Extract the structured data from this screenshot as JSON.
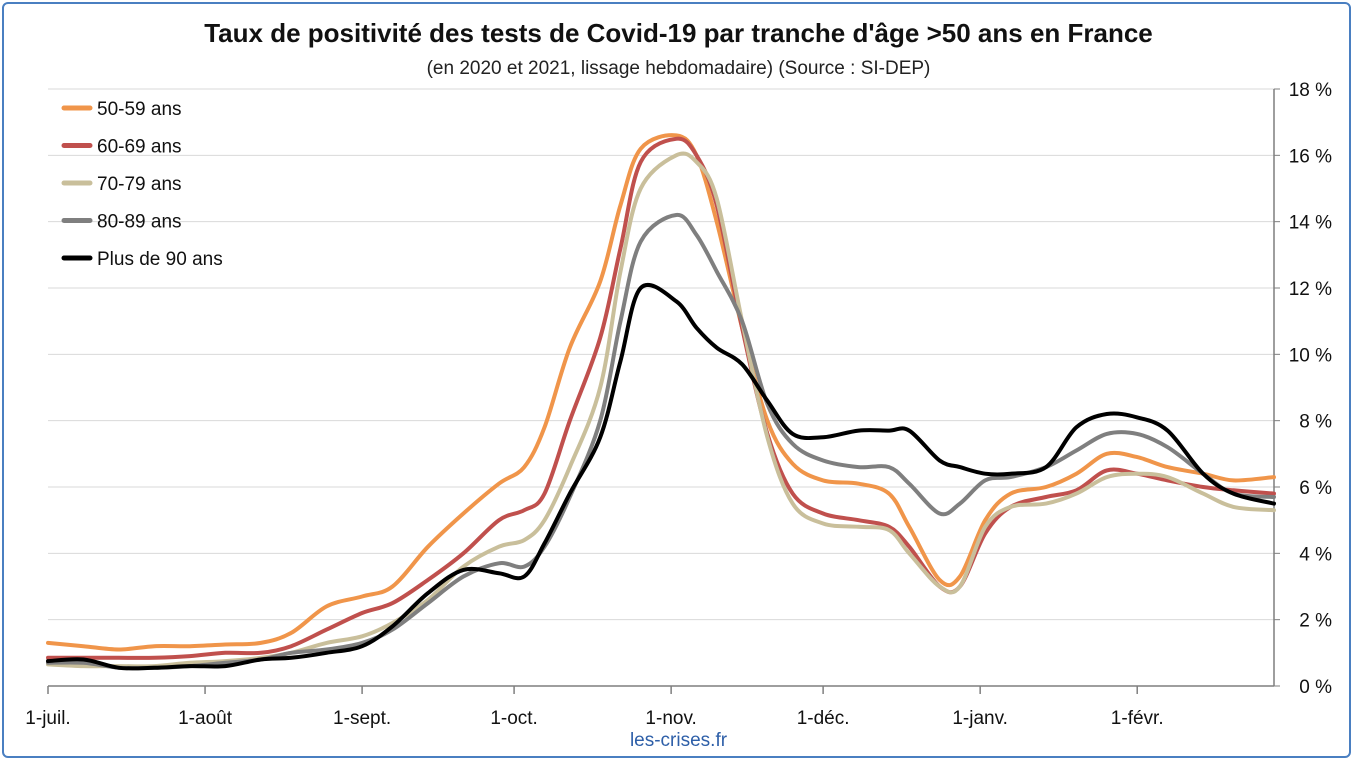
{
  "chart_data": {
    "type": "line",
    "title": "Taux de positivité des tests de Covid-19 par tranche d'âge >50 ans en France",
    "subtitle": "(en 2020 et 2021, lissage hebdomadaire) (Source : SI-DEP)",
    "source": "les-crises.fr",
    "x_axis": {
      "type": "date",
      "range": [
        "2020-07-01",
        "2021-02-28"
      ],
      "ticks": [
        {
          "date": "2020-07-01",
          "label": "1-juil."
        },
        {
          "date": "2020-08-01",
          "label": "1-août"
        },
        {
          "date": "2020-09-01",
          "label": "1-sept."
        },
        {
          "date": "2020-10-01",
          "label": "1-oct."
        },
        {
          "date": "2020-11-01",
          "label": "1-nov."
        },
        {
          "date": "2020-12-01",
          "label": "1-déc."
        },
        {
          "date": "2021-01-01",
          "label": "1-janv."
        },
        {
          "date": "2021-02-01",
          "label": "1-févr."
        }
      ]
    },
    "y_axis": {
      "position": "right",
      "ylim": [
        0,
        18
      ],
      "ticks": [
        {
          "value": 0,
          "label": "0 %"
        },
        {
          "value": 2,
          "label": "2 %"
        },
        {
          "value": 4,
          "label": "4 %"
        },
        {
          "value": 6,
          "label": "6 %"
        },
        {
          "value": 8,
          "label": "8 %"
        },
        {
          "value": 10,
          "label": "10 %"
        },
        {
          "value": 12,
          "label": "12 %"
        },
        {
          "value": 14,
          "label": "14 %"
        },
        {
          "value": 16,
          "label": "16 %"
        },
        {
          "value": 18,
          "label": "18 %"
        }
      ],
      "grid": true
    },
    "legend": "top-left",
    "series": [
      {
        "name": "50-59 ans",
        "color": "#f0954a",
        "points": [
          [
            "2020-07-01",
            1.3
          ],
          [
            "2020-07-08",
            1.2
          ],
          [
            "2020-07-15",
            1.1
          ],
          [
            "2020-07-22",
            1.2
          ],
          [
            "2020-07-29",
            1.2
          ],
          [
            "2020-08-05",
            1.25
          ],
          [
            "2020-08-12",
            1.3
          ],
          [
            "2020-08-18",
            1.6
          ],
          [
            "2020-08-25",
            2.4
          ],
          [
            "2020-09-01",
            2.7
          ],
          [
            "2020-09-07",
            3.0
          ],
          [
            "2020-09-14",
            4.2
          ],
          [
            "2020-09-21",
            5.2
          ],
          [
            "2020-09-28",
            6.1
          ],
          [
            "2020-10-03",
            6.6
          ],
          [
            "2020-10-07",
            7.8
          ],
          [
            "2020-10-12",
            10.2
          ],
          [
            "2020-10-18",
            12.2
          ],
          [
            "2020-10-22",
            14.5
          ],
          [
            "2020-10-26",
            16.2
          ],
          [
            "2020-11-02",
            16.6
          ],
          [
            "2020-11-06",
            16.0
          ],
          [
            "2020-11-10",
            14.0
          ],
          [
            "2020-11-15",
            10.8
          ],
          [
            "2020-11-20",
            8.0
          ],
          [
            "2020-11-25",
            6.7
          ],
          [
            "2020-12-01",
            6.2
          ],
          [
            "2020-12-08",
            6.1
          ],
          [
            "2020-12-14",
            5.8
          ],
          [
            "2020-12-18",
            4.8
          ],
          [
            "2020-12-24",
            3.2
          ],
          [
            "2020-12-28",
            3.3
          ],
          [
            "2021-01-02",
            5.0
          ],
          [
            "2021-01-07",
            5.8
          ],
          [
            "2021-01-14",
            6.0
          ],
          [
            "2021-01-20",
            6.4
          ],
          [
            "2021-01-26",
            7.0
          ],
          [
            "2021-02-01",
            6.9
          ],
          [
            "2021-02-07",
            6.6
          ],
          [
            "2021-02-14",
            6.4
          ],
          [
            "2021-02-20",
            6.2
          ],
          [
            "2021-02-28",
            6.3
          ]
        ]
      },
      {
        "name": "60-69 ans",
        "color": "#c0504d",
        "points": [
          [
            "2020-07-01",
            0.85
          ],
          [
            "2020-07-08",
            0.85
          ],
          [
            "2020-07-15",
            0.85
          ],
          [
            "2020-07-22",
            0.85
          ],
          [
            "2020-07-29",
            0.9
          ],
          [
            "2020-08-05",
            1.0
          ],
          [
            "2020-08-12",
            1.0
          ],
          [
            "2020-08-18",
            1.2
          ],
          [
            "2020-08-25",
            1.7
          ],
          [
            "2020-09-01",
            2.2
          ],
          [
            "2020-09-07",
            2.5
          ],
          [
            "2020-09-14",
            3.2
          ],
          [
            "2020-09-21",
            4.0
          ],
          [
            "2020-09-28",
            5.0
          ],
          [
            "2020-10-03",
            5.3
          ],
          [
            "2020-10-07",
            5.8
          ],
          [
            "2020-10-12",
            8.0
          ],
          [
            "2020-10-18",
            10.5
          ],
          [
            "2020-10-22",
            13.2
          ],
          [
            "2020-10-26",
            15.8
          ],
          [
            "2020-11-02",
            16.5
          ],
          [
            "2020-11-06",
            16.0
          ],
          [
            "2020-11-10",
            14.5
          ],
          [
            "2020-11-15",
            10.8
          ],
          [
            "2020-11-20",
            7.6
          ],
          [
            "2020-11-25",
            5.8
          ],
          [
            "2020-12-01",
            5.2
          ],
          [
            "2020-12-08",
            5.0
          ],
          [
            "2020-12-14",
            4.8
          ],
          [
            "2020-12-18",
            4.2
          ],
          [
            "2020-12-24",
            3.0
          ],
          [
            "2020-12-28",
            3.0
          ],
          [
            "2021-01-02",
            4.6
          ],
          [
            "2021-01-07",
            5.4
          ],
          [
            "2021-01-14",
            5.7
          ],
          [
            "2021-01-20",
            5.9
          ],
          [
            "2021-01-26",
            6.5
          ],
          [
            "2021-02-01",
            6.4
          ],
          [
            "2021-02-07",
            6.2
          ],
          [
            "2021-02-14",
            6.0
          ],
          [
            "2021-02-20",
            5.9
          ],
          [
            "2021-02-28",
            5.8
          ]
        ]
      },
      {
        "name": "70-79 ans",
        "color": "#c9bf9b",
        "points": [
          [
            "2020-07-01",
            0.65
          ],
          [
            "2020-07-08",
            0.6
          ],
          [
            "2020-07-15",
            0.6
          ],
          [
            "2020-07-22",
            0.6
          ],
          [
            "2020-07-29",
            0.7
          ],
          [
            "2020-08-05",
            0.75
          ],
          [
            "2020-08-12",
            0.85
          ],
          [
            "2020-08-18",
            1.0
          ],
          [
            "2020-08-25",
            1.3
          ],
          [
            "2020-09-01",
            1.5
          ],
          [
            "2020-09-07",
            1.9
          ],
          [
            "2020-09-14",
            2.6
          ],
          [
            "2020-09-21",
            3.6
          ],
          [
            "2020-09-28",
            4.2
          ],
          [
            "2020-10-03",
            4.4
          ],
          [
            "2020-10-07",
            5.0
          ],
          [
            "2020-10-12",
            6.6
          ],
          [
            "2020-10-18",
            9.0
          ],
          [
            "2020-10-22",
            12.5
          ],
          [
            "2020-10-26",
            15.0
          ],
          [
            "2020-11-02",
            16.0
          ],
          [
            "2020-11-06",
            15.8
          ],
          [
            "2020-11-10",
            14.7
          ],
          [
            "2020-11-15",
            11.0
          ],
          [
            "2020-11-20",
            7.5
          ],
          [
            "2020-11-25",
            5.5
          ],
          [
            "2020-12-01",
            4.9
          ],
          [
            "2020-12-08",
            4.8
          ],
          [
            "2020-12-14",
            4.7
          ],
          [
            "2020-12-18",
            4.0
          ],
          [
            "2020-12-24",
            3.0
          ],
          [
            "2020-12-28",
            3.0
          ],
          [
            "2021-01-02",
            4.8
          ],
          [
            "2021-01-07",
            5.4
          ],
          [
            "2021-01-14",
            5.5
          ],
          [
            "2021-01-20",
            5.8
          ],
          [
            "2021-01-26",
            6.3
          ],
          [
            "2021-02-01",
            6.4
          ],
          [
            "2021-02-07",
            6.3
          ],
          [
            "2021-02-14",
            5.8
          ],
          [
            "2021-02-20",
            5.4
          ],
          [
            "2021-02-28",
            5.3
          ]
        ]
      },
      {
        "name": "80-89 ans",
        "color": "#7f7f7f",
        "points": [
          [
            "2020-07-01",
            0.7
          ],
          [
            "2020-07-08",
            0.7
          ],
          [
            "2020-07-15",
            0.55
          ],
          [
            "2020-07-22",
            0.55
          ],
          [
            "2020-07-29",
            0.6
          ],
          [
            "2020-08-05",
            0.7
          ],
          [
            "2020-08-12",
            0.8
          ],
          [
            "2020-08-18",
            1.0
          ],
          [
            "2020-08-25",
            1.1
          ],
          [
            "2020-09-01",
            1.3
          ],
          [
            "2020-09-07",
            1.7
          ],
          [
            "2020-09-14",
            2.5
          ],
          [
            "2020-09-21",
            3.3
          ],
          [
            "2020-09-28",
            3.7
          ],
          [
            "2020-10-03",
            3.6
          ],
          [
            "2020-10-07",
            4.2
          ],
          [
            "2020-10-12",
            5.7
          ],
          [
            "2020-10-18",
            8.0
          ],
          [
            "2020-10-22",
            11.0
          ],
          [
            "2020-10-26",
            13.4
          ],
          [
            "2020-11-02",
            14.2
          ],
          [
            "2020-11-06",
            13.6
          ],
          [
            "2020-11-10",
            12.5
          ],
          [
            "2020-11-15",
            11.0
          ],
          [
            "2020-11-20",
            8.5
          ],
          [
            "2020-11-25",
            7.3
          ],
          [
            "2020-12-01",
            6.8
          ],
          [
            "2020-12-08",
            6.6
          ],
          [
            "2020-12-14",
            6.6
          ],
          [
            "2020-12-18",
            6.1
          ],
          [
            "2020-12-24",
            5.2
          ],
          [
            "2020-12-28",
            5.5
          ],
          [
            "2021-01-02",
            6.2
          ],
          [
            "2021-01-07",
            6.3
          ],
          [
            "2021-01-14",
            6.6
          ],
          [
            "2021-01-20",
            7.1
          ],
          [
            "2021-01-26",
            7.6
          ],
          [
            "2021-02-01",
            7.6
          ],
          [
            "2021-02-07",
            7.2
          ],
          [
            "2021-02-14",
            6.4
          ],
          [
            "2021-02-20",
            5.8
          ],
          [
            "2021-02-28",
            5.7
          ]
        ]
      },
      {
        "name": "Plus de 90 ans",
        "color": "#000000",
        "points": [
          [
            "2020-07-01",
            0.75
          ],
          [
            "2020-07-08",
            0.8
          ],
          [
            "2020-07-15",
            0.55
          ],
          [
            "2020-07-22",
            0.55
          ],
          [
            "2020-07-29",
            0.6
          ],
          [
            "2020-08-05",
            0.6
          ],
          [
            "2020-08-12",
            0.8
          ],
          [
            "2020-08-18",
            0.85
          ],
          [
            "2020-08-25",
            1.0
          ],
          [
            "2020-09-01",
            1.2
          ],
          [
            "2020-09-07",
            1.8
          ],
          [
            "2020-09-14",
            2.8
          ],
          [
            "2020-09-21",
            3.5
          ],
          [
            "2020-09-28",
            3.4
          ],
          [
            "2020-10-03",
            3.3
          ],
          [
            "2020-10-07",
            4.3
          ],
          [
            "2020-10-12",
            5.8
          ],
          [
            "2020-10-18",
            7.5
          ],
          [
            "2020-10-22",
            9.8
          ],
          [
            "2020-10-26",
            12.0
          ],
          [
            "2020-11-02",
            11.6
          ],
          [
            "2020-11-06",
            10.8
          ],
          [
            "2020-11-10",
            10.2
          ],
          [
            "2020-11-15",
            9.7
          ],
          [
            "2020-11-20",
            8.6
          ],
          [
            "2020-11-25",
            7.6
          ],
          [
            "2020-12-01",
            7.5
          ],
          [
            "2020-12-08",
            7.7
          ],
          [
            "2020-12-14",
            7.7
          ],
          [
            "2020-12-18",
            7.7
          ],
          [
            "2020-12-24",
            6.8
          ],
          [
            "2020-12-28",
            6.6
          ],
          [
            "2021-01-02",
            6.4
          ],
          [
            "2021-01-07",
            6.4
          ],
          [
            "2021-01-14",
            6.6
          ],
          [
            "2021-01-20",
            7.8
          ],
          [
            "2021-01-26",
            8.2
          ],
          [
            "2021-02-01",
            8.1
          ],
          [
            "2021-02-07",
            7.7
          ],
          [
            "2021-02-14",
            6.4
          ],
          [
            "2021-02-20",
            5.8
          ],
          [
            "2021-02-28",
            5.5
          ]
        ]
      }
    ]
  }
}
